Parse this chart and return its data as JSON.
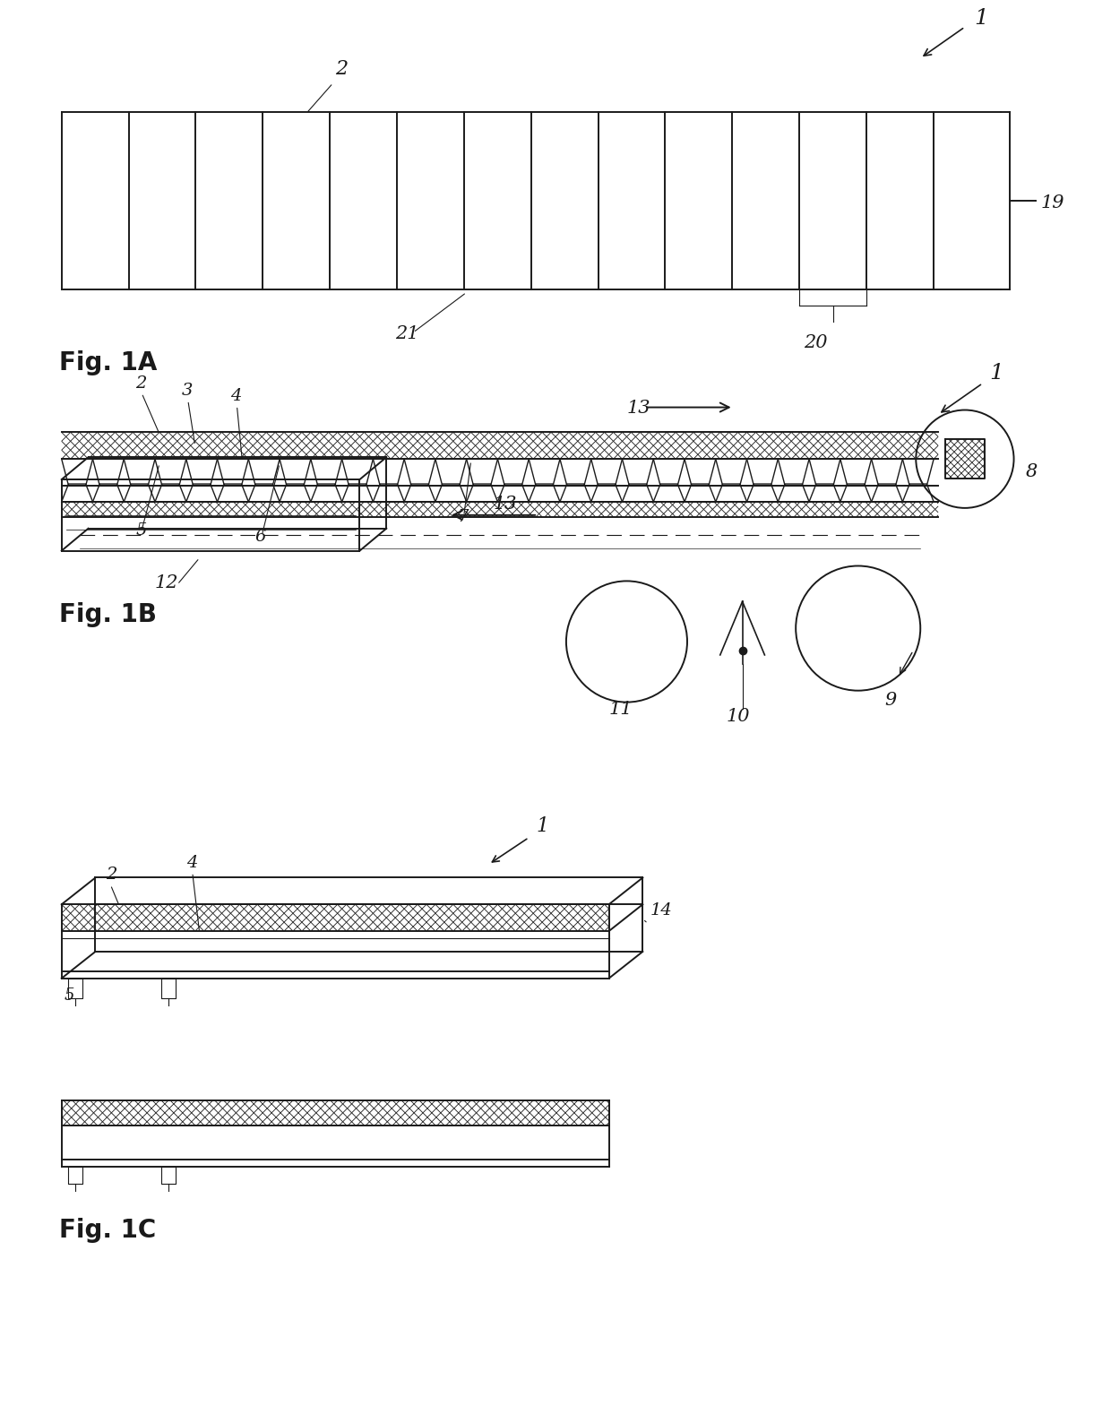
{
  "bg_color": "#ffffff",
  "line_color": "#1a1a1a",
  "fig_width": 12.4,
  "fig_height": 15.88,
  "fig1a_label": "Fig. 1A",
  "fig1b_label": "Fig. 1B",
  "fig1c_label": "Fig. 1C",
  "lw_main": 1.4,
  "lw_thin": 0.8,
  "lw_hatch": 0.6
}
